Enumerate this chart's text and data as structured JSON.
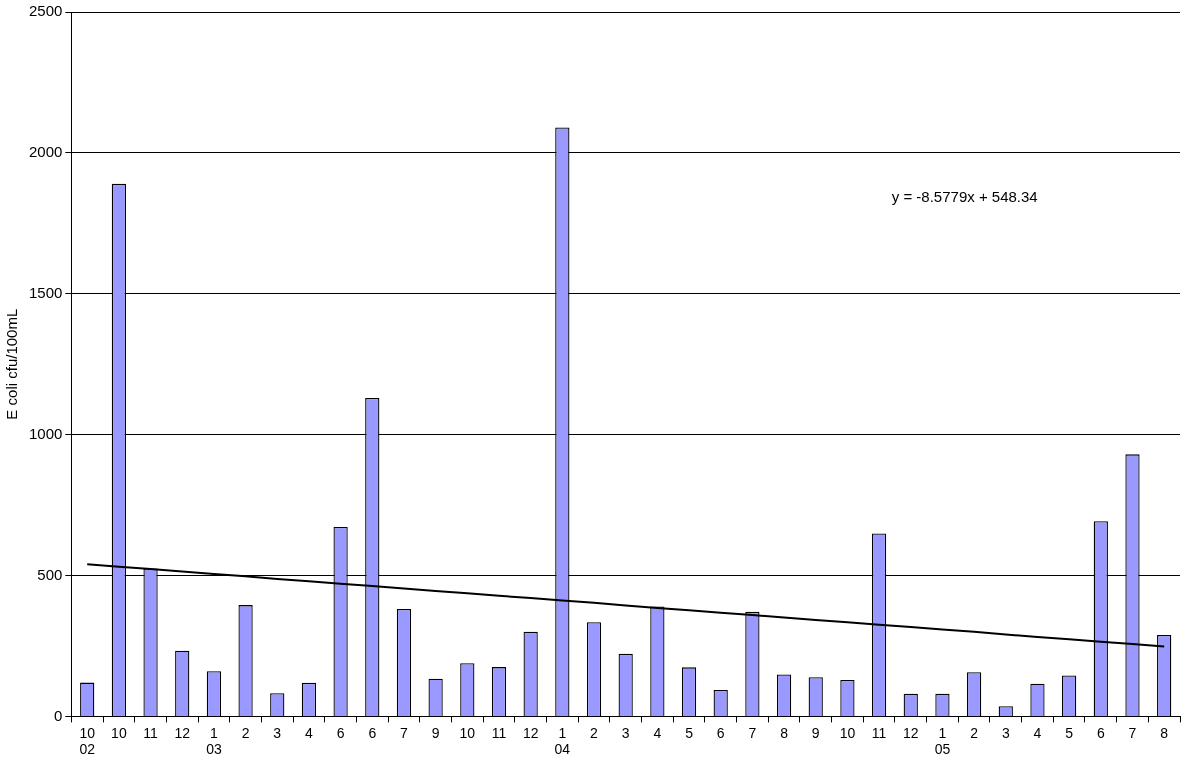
{
  "chart_data": {
    "type": "bar",
    "ylabel": "E coli cfu/100mL",
    "categories": [
      "10\n02",
      "10",
      "11",
      "12",
      "1\n03",
      "2",
      "3",
      "4",
      "6",
      "6",
      "7",
      "9",
      "10",
      "11",
      "12",
      "1\n04",
      "2",
      "3",
      "4",
      "5",
      "6",
      "7",
      "8",
      "9",
      "10",
      "11",
      "12",
      "1\n05",
      "2",
      "3",
      "4",
      "5",
      "6",
      "7",
      "8"
    ],
    "series": [
      {
        "color": "#9999ff",
        "values": [
          120,
          1890,
          525,
          233,
          160,
          395,
          82,
          119,
          672,
          1130,
          381,
          134,
          189,
          175,
          300,
          2090,
          334,
          222,
          390,
          174,
          94,
          371,
          149,
          139,
          129,
          649,
          80,
          80,
          157,
          36,
          116,
          145,
          693,
          930,
          289
        ]
      },
      {
        "type": "line",
        "color": "#000000",
        "values": [
          540,
          531,
          523,
          514,
          505,
          497,
          488,
          480,
          471,
          463,
          454,
          445,
          437,
          428,
          420,
          411,
          403,
          394,
          385,
          377,
          368,
          360,
          351,
          342,
          334,
          325,
          317,
          308,
          300,
          291,
          282,
          274,
          265,
          257,
          248
        ]
      }
    ],
    "ylim": [
      0,
      2500
    ],
    "yticks": [
      0,
      500,
      1000,
      1500,
      2000,
      2500
    ],
    "grid": "y",
    "legend": false,
    "marker": "none",
    "annotations": [
      "y = -8.5779x + 548.34"
    ]
  }
}
